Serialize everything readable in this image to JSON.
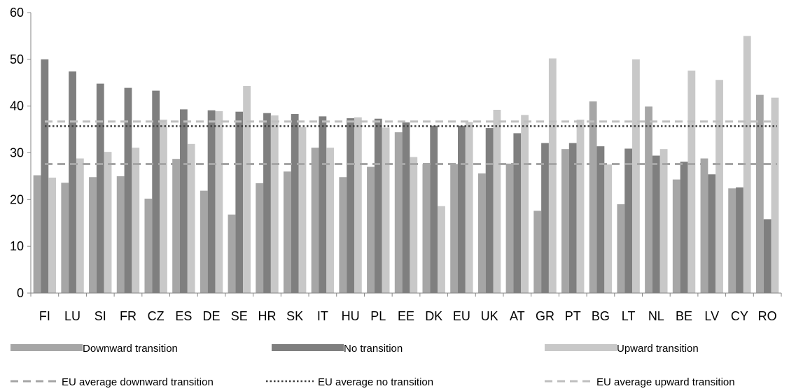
{
  "chart_data": {
    "type": "bar",
    "categories": [
      "FI",
      "LU",
      "SI",
      "FR",
      "CZ",
      "ES",
      "DE",
      "SE",
      "HR",
      "SK",
      "IT",
      "HU",
      "PL",
      "EE",
      "DK",
      "EU",
      "UK",
      "AT",
      "GR",
      "PT",
      "BG",
      "LT",
      "NL",
      "BE",
      "LV",
      "CY",
      "RO"
    ],
    "series": [
      {
        "name": "Downward transition",
        "color": "#a6a6a6",
        "values": [
          25.2,
          23.6,
          24.8,
          25.0,
          20.2,
          28.7,
          21.9,
          16.8,
          23.5,
          26.0,
          31.1,
          24.8,
          27.0,
          34.4,
          27.6,
          27.6,
          25.6,
          27.7,
          17.6,
          30.8,
          41.0,
          19.0,
          39.9,
          24.3,
          28.8,
          22.4,
          42.4
        ]
      },
      {
        "name": "No transition",
        "color": "#7f7f7f",
        "values": [
          50.0,
          47.4,
          44.8,
          43.9,
          43.3,
          39.3,
          39.1,
          38.8,
          38.5,
          38.3,
          37.8,
          37.4,
          37.3,
          36.5,
          35.8,
          35.8,
          35.3,
          34.2,
          32.1,
          32.1,
          31.4,
          30.9,
          29.4,
          28.1,
          25.4,
          22.6,
          15.8
        ]
      },
      {
        "name": "Upward transition",
        "color": "#c8c8c8",
        "values": [
          24.7,
          28.8,
          30.2,
          31.1,
          37.1,
          31.9,
          38.9,
          44.3,
          38.0,
          35.5,
          31.1,
          37.6,
          35.4,
          29.1,
          18.6,
          36.6,
          39.2,
          38.1,
          50.2,
          37.1,
          27.5,
          50.0,
          30.8,
          47.6,
          45.6,
          55.0,
          41.8
        ]
      }
    ],
    "reference_lines": [
      {
        "name": "EU average downward transition",
        "value": 27.6,
        "color": "#a6a6a6",
        "style": "dashed"
      },
      {
        "name": "EU average no transition",
        "value": 35.7,
        "color": "#404040",
        "style": "dotted"
      },
      {
        "name": "EU average upward transition",
        "value": 36.7,
        "color": "#bfbfbf",
        "style": "dashed"
      }
    ],
    "y_ticks": [
      "0",
      "10",
      "20",
      "30",
      "40",
      "50",
      "60"
    ],
    "ylim": [
      0,
      60
    ],
    "grid": false,
    "legend_position": "bottom"
  }
}
